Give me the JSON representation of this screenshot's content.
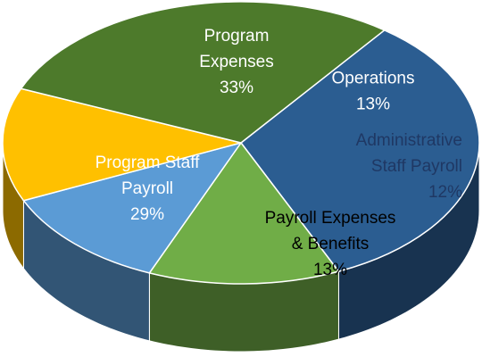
{
  "chart_data": {
    "type": "pie3d",
    "categories": [
      [
        "Program",
        "Expenses"
      ],
      [
        "Operations"
      ],
      [
        "Administrative",
        "Staff Payroll"
      ],
      [
        "Payroll Expenses",
        "& Benefits"
      ],
      [
        "Program Staff",
        "Payroll"
      ]
    ],
    "values": [
      33,
      13,
      12,
      13,
      29
    ],
    "value_labels": [
      "33%",
      "13%",
      "12%",
      "13%",
      "29%"
    ],
    "colors": [
      "#2b5d91",
      "#70ad47",
      "#5b9bd5",
      "#ffc000",
      "#4d7a2b"
    ],
    "label_colors": [
      "#ffffff",
      "#ffffff",
      "#1f3864",
      "#000000",
      "#ffffff"
    ]
  }
}
